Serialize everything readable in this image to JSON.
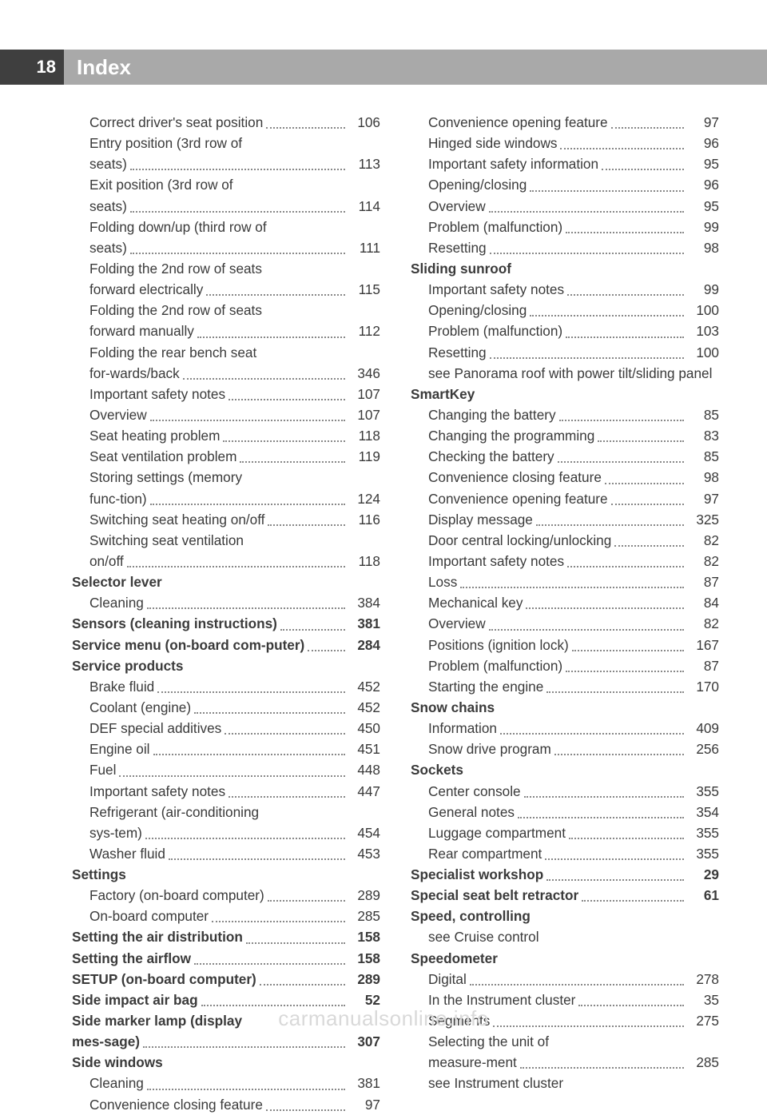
{
  "page_number": "18",
  "page_title": "Index",
  "footer": "carmanualsonline.info",
  "colors": {
    "page_num_bg": "#3f3f3f",
    "title_bg": "#a9a9a9",
    "text": "#3a3a3a",
    "footer": "#d9d9d9"
  },
  "entries": [
    {
      "type": "sub",
      "label": "Correct driver's seat position",
      "page": "106"
    },
    {
      "type": "sub",
      "label": "Entry position (3rd row of seats)",
      "page": "113"
    },
    {
      "type": "sub",
      "label": "Exit position (3rd row of seats)",
      "page": "114"
    },
    {
      "type": "sub",
      "label": "Folding down/up (third row of seats)",
      "page": "111"
    },
    {
      "type": "sub",
      "label": "Folding the 2nd row of seats forward electrically",
      "page": "115"
    },
    {
      "type": "sub",
      "label": "Folding the 2nd row of seats forward manually",
      "page": "112"
    },
    {
      "type": "sub",
      "label": "Folding the rear bench seat for-wards/back",
      "page": "346"
    },
    {
      "type": "sub",
      "label": "Important safety notes",
      "page": "107"
    },
    {
      "type": "sub",
      "label": "Overview",
      "page": "107"
    },
    {
      "type": "sub",
      "label": "Seat heating problem",
      "page": "118"
    },
    {
      "type": "sub",
      "label": "Seat ventilation problem",
      "page": "119"
    },
    {
      "type": "sub",
      "label": "Storing settings (memory func-tion)",
      "page": "124"
    },
    {
      "type": "sub",
      "label": "Switching seat heating on/off",
      "page": "116"
    },
    {
      "type": "sub",
      "label": "Switching seat ventilation on/off",
      "page": "118"
    },
    {
      "type": "heading",
      "label": "Selector lever"
    },
    {
      "type": "sub",
      "label": "Cleaning",
      "page": "384"
    },
    {
      "type": "heading-row",
      "label": "Sensors (cleaning instructions)",
      "page": "381"
    },
    {
      "type": "heading-row",
      "label": "Service menu (on-board com-puter)",
      "page": "284"
    },
    {
      "type": "heading",
      "label": "Service products"
    },
    {
      "type": "sub",
      "label": "Brake fluid",
      "page": "452"
    },
    {
      "type": "sub",
      "label": "Coolant (engine)",
      "page": "452"
    },
    {
      "type": "sub",
      "label": "DEF special additives",
      "page": "450"
    },
    {
      "type": "sub",
      "label": "Engine oil",
      "page": "451"
    },
    {
      "type": "sub",
      "label": "Fuel",
      "page": "448"
    },
    {
      "type": "sub",
      "label": "Important safety notes",
      "page": "447"
    },
    {
      "type": "sub",
      "label": "Refrigerant (air-conditioning sys-tem)",
      "page": "454"
    },
    {
      "type": "sub",
      "label": "Washer fluid",
      "page": "453"
    },
    {
      "type": "heading",
      "label": "Settings"
    },
    {
      "type": "sub",
      "label": "Factory (on-board computer)",
      "page": "289"
    },
    {
      "type": "sub",
      "label": "On-board computer",
      "page": "285"
    },
    {
      "type": "heading-row",
      "label": "Setting the air distribution",
      "page": "158"
    },
    {
      "type": "heading-row",
      "label": "Setting the airflow",
      "page": "158"
    },
    {
      "type": "heading-row",
      "label": "SETUP (on-board computer)",
      "page": "289"
    },
    {
      "type": "heading-row",
      "label": "Side impact air bag",
      "page": "52"
    },
    {
      "type": "heading-row",
      "label": "Side marker lamp (display mes-sage)",
      "page": "307"
    },
    {
      "type": "heading",
      "label": "Side windows"
    },
    {
      "type": "sub",
      "label": "Cleaning",
      "page": "381"
    },
    {
      "type": "sub",
      "label": "Convenience closing feature",
      "page": "97"
    },
    {
      "type": "sub",
      "label": "Convenience opening feature",
      "page": "97"
    },
    {
      "type": "sub",
      "label": "Hinged side windows",
      "page": "96"
    },
    {
      "type": "sub",
      "label": "Important safety information",
      "page": "95"
    },
    {
      "type": "sub",
      "label": "Opening/closing",
      "page": "96"
    },
    {
      "type": "sub",
      "label": "Overview",
      "page": "95"
    },
    {
      "type": "sub",
      "label": "Problem (malfunction)",
      "page": "99"
    },
    {
      "type": "sub",
      "label": "Resetting",
      "page": "98"
    },
    {
      "type": "heading",
      "label": "Sliding sunroof"
    },
    {
      "type": "sub",
      "label": "Important safety notes",
      "page": "99"
    },
    {
      "type": "sub",
      "label": "Opening/closing",
      "page": "100"
    },
    {
      "type": "sub",
      "label": "Problem (malfunction)",
      "page": "103"
    },
    {
      "type": "sub",
      "label": "Resetting",
      "page": "100"
    },
    {
      "type": "plain-sub",
      "label": "see Panorama roof with power tilt/sliding panel"
    },
    {
      "type": "heading",
      "label": "SmartKey"
    },
    {
      "type": "sub",
      "label": "Changing the battery",
      "page": "85"
    },
    {
      "type": "sub",
      "label": "Changing the programming",
      "page": "83"
    },
    {
      "type": "sub",
      "label": "Checking the battery",
      "page": "85"
    },
    {
      "type": "sub",
      "label": "Convenience closing feature",
      "page": "98"
    },
    {
      "type": "sub",
      "label": "Convenience opening feature",
      "page": "97"
    },
    {
      "type": "sub",
      "label": "Display message",
      "page": "325"
    },
    {
      "type": "sub",
      "label": "Door central locking/unlocking",
      "page": "82"
    },
    {
      "type": "sub",
      "label": "Important safety notes",
      "page": "82"
    },
    {
      "type": "sub",
      "label": "Loss",
      "page": "87"
    },
    {
      "type": "sub",
      "label": "Mechanical key",
      "page": "84"
    },
    {
      "type": "sub",
      "label": "Overview",
      "page": "82"
    },
    {
      "type": "sub",
      "label": "Positions (ignition lock)",
      "page": "167"
    },
    {
      "type": "sub",
      "label": "Problem (malfunction)",
      "page": "87"
    },
    {
      "type": "sub",
      "label": "Starting the engine",
      "page": "170"
    },
    {
      "type": "heading",
      "label": "Snow chains"
    },
    {
      "type": "sub",
      "label": "Information",
      "page": "409"
    },
    {
      "type": "sub",
      "label": "Snow drive program",
      "page": "256"
    },
    {
      "type": "heading",
      "label": "Sockets"
    },
    {
      "type": "sub",
      "label": "Center console",
      "page": "355"
    },
    {
      "type": "sub",
      "label": "General notes",
      "page": "354"
    },
    {
      "type": "sub",
      "label": "Luggage compartment",
      "page": "355"
    },
    {
      "type": "sub",
      "label": "Rear compartment",
      "page": "355"
    },
    {
      "type": "heading-row",
      "label": "Specialist workshop",
      "page": "29"
    },
    {
      "type": "heading-row",
      "label": "Special seat belt retractor",
      "page": "61"
    },
    {
      "type": "heading",
      "label": "Speed, controlling"
    },
    {
      "type": "plain-sub",
      "label": "see Cruise control"
    },
    {
      "type": "heading",
      "label": "Speedometer"
    },
    {
      "type": "sub",
      "label": "Digital",
      "page": "278"
    },
    {
      "type": "sub",
      "label": "In the Instrument cluster",
      "page": "35"
    },
    {
      "type": "sub",
      "label": "Segments",
      "page": "275"
    },
    {
      "type": "sub",
      "label": "Selecting the unit of measure-ment",
      "page": "285"
    },
    {
      "type": "plain-sub",
      "label": "see Instrument cluster"
    }
  ]
}
